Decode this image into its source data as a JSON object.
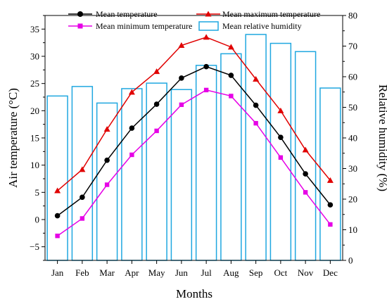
{
  "chart_data": {
    "type": "bar+line",
    "categories": [
      "Jan",
      "Feb",
      "Mar",
      "Apr",
      "May",
      "Jun",
      "Jul",
      "Aug",
      "Sep",
      "Oct",
      "Nov",
      "Dec"
    ],
    "xlabel": "Months",
    "ylabel_left": "Air temperature (°C)",
    "ylabel_right": "Relative humidity (%)",
    "y_left_lim": [
      -7.5,
      37.5
    ],
    "y_left_ticks": [
      -5,
      0,
      5,
      10,
      15,
      20,
      25,
      30,
      35
    ],
    "y_left_tick_labels": [
      "−5",
      "0",
      "5",
      "10",
      "15",
      "20",
      "25",
      "30",
      "35"
    ],
    "y_right_lim": [
      0,
      80
    ],
    "y_right_ticks": [
      0,
      10,
      20,
      30,
      40,
      50,
      60,
      70,
      80
    ],
    "y_right_tick_labels": [
      "0",
      "10",
      "20",
      "30",
      "40",
      "50",
      "60",
      "70",
      "80"
    ],
    "legend_position": "top",
    "series": [
      {
        "name": "Mean temperature",
        "kind": "line",
        "axis": "left",
        "color": "#000000",
        "marker": "circle",
        "values": [
          0.7,
          4.1,
          10.9,
          16.8,
          21.2,
          26.0,
          28.1,
          26.5,
          21.0,
          15.1,
          8.4,
          2.7
        ]
      },
      {
        "name": "Mean maximum temperature",
        "kind": "line",
        "axis": "left",
        "color": "#e00000",
        "marker": "triangle",
        "values": [
          5.3,
          9.2,
          16.6,
          23.4,
          27.2,
          32.0,
          33.5,
          31.7,
          25.8,
          20.0,
          12.8,
          7.2
        ]
      },
      {
        "name": "Mean minimum temperature",
        "kind": "line",
        "axis": "left",
        "color": "#e600e6",
        "marker": "square",
        "values": [
          -3.0,
          0.2,
          6.4,
          11.9,
          16.3,
          21.1,
          23.8,
          22.7,
          17.7,
          11.4,
          5.0,
          -0.9
        ]
      },
      {
        "name": "Mean relative humidity",
        "kind": "bar",
        "axis": "right",
        "color": "#1fa7e0",
        "values": [
          53.7,
          56.8,
          51.4,
          56.1,
          57.9,
          55.8,
          63.7,
          67.5,
          73.8,
          70.9,
          68.2,
          56.3
        ]
      }
    ]
  }
}
